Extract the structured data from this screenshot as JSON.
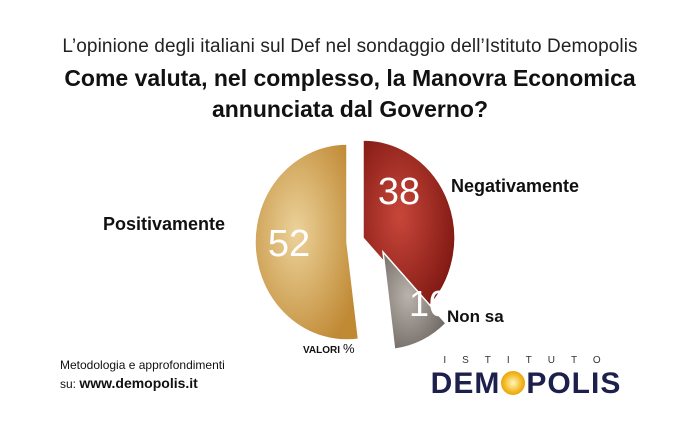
{
  "header": {
    "subtitle": "L’opinione degli italiani sul Def nel sondaggio dell’Istituto Demopolis",
    "question_line1": "Come valuta, nel complesso, la Manovra Economica",
    "question_line2": "annunciata dal Governo?"
  },
  "chart_data": {
    "type": "pie",
    "categories": [
      "Positivamente",
      "Negativamente",
      "Non sa"
    ],
    "values": [
      52,
      38,
      10
    ],
    "colors": [
      "#d9a95a",
      "#a82a22",
      "#9a938c"
    ],
    "unit_note": "VALORI",
    "unit_symbol": "%"
  },
  "footer": {
    "method_line1": "Metodologia e approfondimenti",
    "method_prefix": "su:",
    "method_url": "www.demopolis.it"
  },
  "logo": {
    "top_text": "ISTITUTO",
    "main_before_o": "DEM",
    "main_after_o": "POLIS"
  }
}
